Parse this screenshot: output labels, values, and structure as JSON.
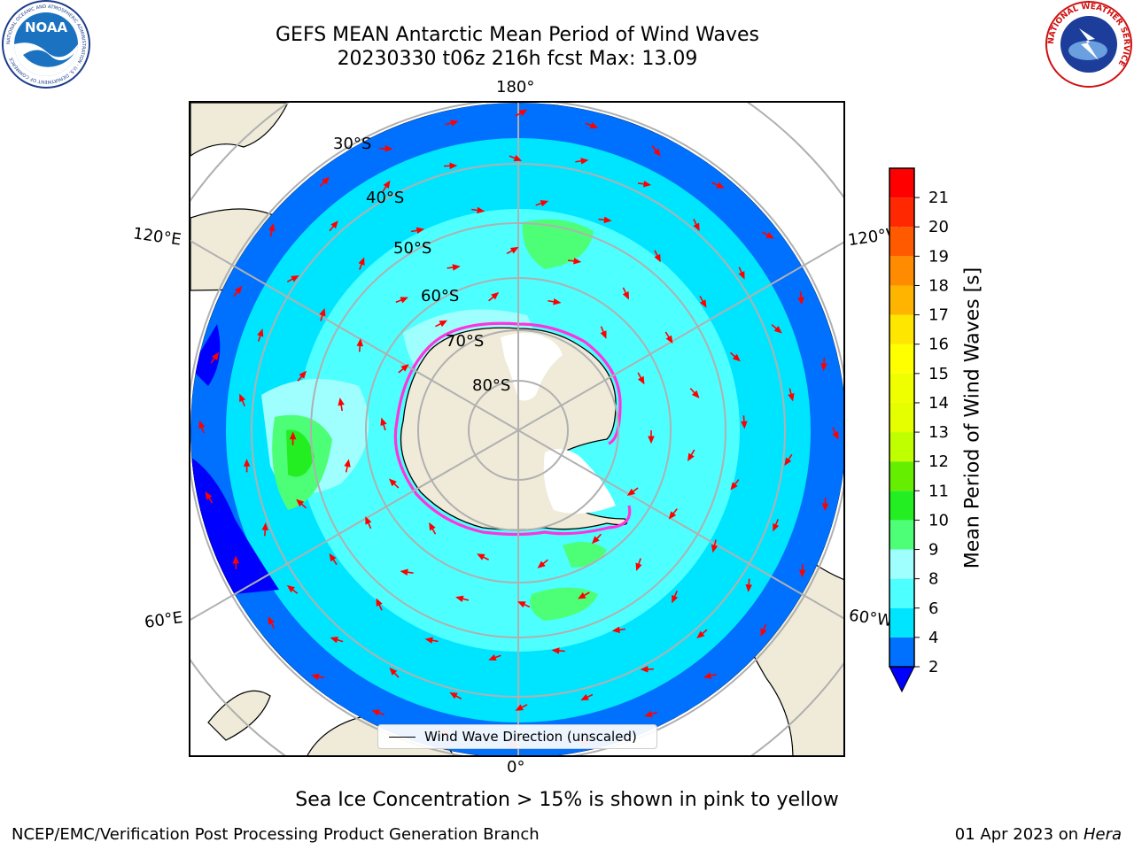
{
  "header": {
    "title_line1": "GEFS MEAN Antarctic Mean Period of Wind Waves",
    "title_line2": "20230330 t06z 216h fcst   Max: 13.09"
  },
  "logos": {
    "noaa_text": "NOAA",
    "noaa_ring_text": "NATIONAL OCEANIC AND ATMOSPHERIC ADMINISTRATION · U.S. DEPARTMENT OF COMMERCE",
    "nws_ring_text": "NATIONAL WEATHER SERVICE"
  },
  "map": {
    "projection": "south-polar-stereographic",
    "lon_labels": {
      "top": "180°",
      "bottom": "0°",
      "upper_left": "120°E",
      "upper_right": "120°W",
      "lower_left": "60°E",
      "lower_right": "60°W"
    },
    "lat_labels": [
      "30°S",
      "40°S",
      "50°S",
      "60°S",
      "70°S",
      "80°S"
    ],
    "legend_entry": "Wind Wave Direction (unscaled)",
    "colors": {
      "land": "#efebd8",
      "ice_shelf": "#ffffff",
      "sea_ice_edge": "#ff33dd",
      "arrow": "#ff0000",
      "gridline": "#b0b0b0"
    }
  },
  "colorbar": {
    "label": "Mean Period of Wind Waves [s]",
    "ticks": [
      "2",
      "4",
      "6",
      "8",
      "9",
      "10",
      "11",
      "12",
      "13",
      "14",
      "15",
      "16",
      "17",
      "18",
      "19",
      "20",
      "21"
    ],
    "colors": [
      "#0070ff",
      "#00e5ff",
      "#4dffff",
      "#9fffff",
      "#4dff77",
      "#22ee22",
      "#66ee00",
      "#c0ff00",
      "#e6ff00",
      "#f0ff00",
      "#ffff00",
      "#ffe600",
      "#ffb400",
      "#ff8c00",
      "#ff5a00",
      "#ff2800",
      "#ff0000"
    ],
    "extend_color": "#0000ff"
  },
  "footer": {
    "note": "Sea Ice Concentration > 15% is shown in pink to yellow",
    "credit": "NCEP/EMC/Verification Post Processing Product Generation Branch",
    "date": "01 Apr 2023 on",
    "host": "Hera"
  }
}
